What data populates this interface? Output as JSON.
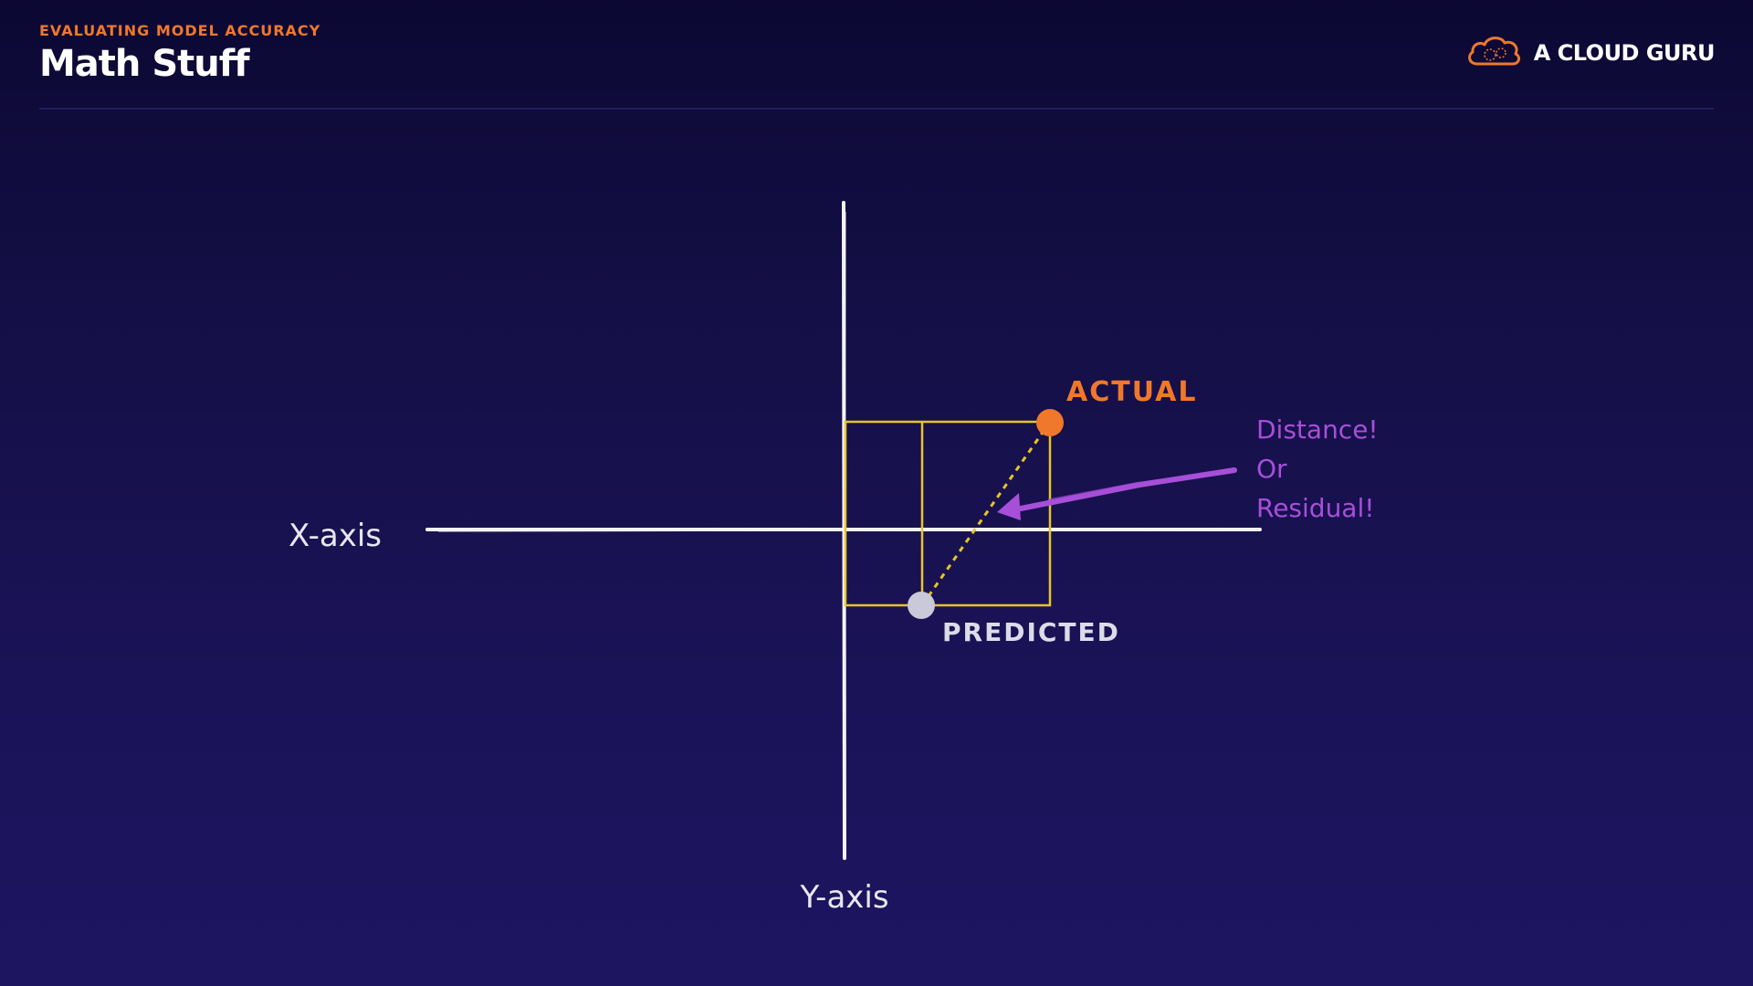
{
  "header": {
    "eyebrow": "EVALUATING MODEL ACCURACY",
    "title": "Math Stuff"
  },
  "brand": {
    "name": "A CLOUD GURU",
    "icon": "cloud-logo-icon",
    "color": "#f0782a"
  },
  "diagram": {
    "x_axis_label": "X-axis",
    "y_axis_label": "Y-axis",
    "actual_label": "ACTUAL",
    "predicted_label": "PREDICTED",
    "note_lines": [
      "Distance!",
      "Or",
      "Residual!"
    ],
    "colors": {
      "actual": "#f0782a",
      "predicted": "#c9c9d9",
      "box": "#e6c52a",
      "note": "#a74fd8",
      "axis": "#f4f3f8"
    }
  }
}
